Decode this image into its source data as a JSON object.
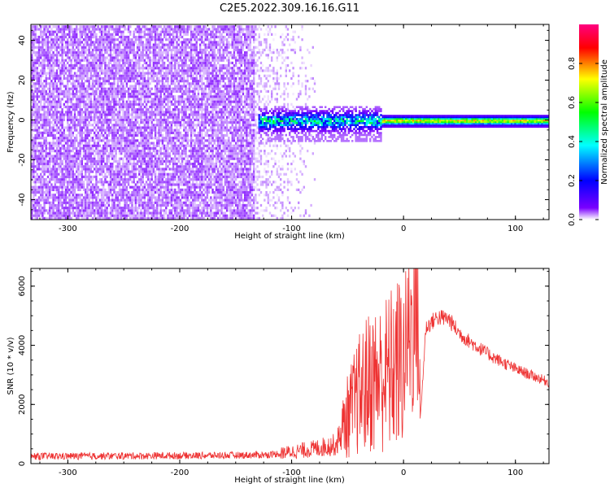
{
  "title": "C2E5.2022.309.16.16.G11",
  "chart_data": [
    {
      "type": "heatmap",
      "name": "spectrogram",
      "xlabel": "Height of straight line (km)",
      "ylabel": "Frequency (Hz)",
      "xlim": [
        -333,
        130
      ],
      "ylim": [
        -50,
        48
      ],
      "xticks": [
        -300,
        -200,
        -100,
        0,
        100
      ],
      "yticks": [
        -40,
        -20,
        0,
        20,
        40
      ],
      "colorbar": {
        "label": "Normalized spectral amplitude",
        "range": [
          0.0,
          1.0
        ],
        "ticks": [
          "0.0",
          "0.2",
          "0.4",
          "0.6",
          "0.8"
        ],
        "tick_values": [
          0.0,
          0.2,
          0.4,
          0.6,
          0.8
        ],
        "colormap": [
          "#ffffff",
          "#7a00ff",
          "#0000ff",
          "#00ffff",
          "#00ff00",
          "#ffff00",
          "#ff0000",
          "#ff0080"
        ]
      },
      "regions": [
        {
          "x": [
            -333,
            -130
          ],
          "freq": [
            -50,
            48
          ],
          "amplitude": "low noise (0.05-0.15)"
        },
        {
          "x": [
            -130,
            -20
          ],
          "freq": [
            -10,
            8
          ],
          "amplitude": "0.2-0.5 band centred near 0 Hz"
        },
        {
          "x": [
            -20,
            130
          ],
          "freq": [
            -2,
            2
          ],
          "amplitude": "0.4-0.9 narrow line at 0 Hz"
        }
      ],
      "grid": false
    },
    {
      "type": "line",
      "name": "snr",
      "xlabel": "Height of straight line (km)",
      "ylabel": "SNR (10 * v/v)",
      "xlim": [
        -333,
        130
      ],
      "ylim": [
        0,
        6600
      ],
      "xticks": [
        -300,
        -200,
        -100,
        0,
        100
      ],
      "yticks": [
        0,
        2000,
        4000,
        6000
      ],
      "color": "#ee3333",
      "grid": false,
      "series": [
        {
          "x": [
            -333,
            -300,
            -250,
            -200,
            -150,
            -120,
            -100,
            -80,
            -60,
            -50,
            -40,
            -30,
            -20,
            -10,
            0,
            5,
            10,
            12,
            15,
            20,
            30,
            40,
            50,
            60,
            70,
            80,
            90,
            100,
            110,
            120,
            130
          ],
          "y": [
            250,
            250,
            260,
            270,
            280,
            300,
            400,
            500,
            650,
            1600,
            2300,
            2800,
            2900,
            3200,
            3500,
            4500,
            4800,
            6500,
            1500,
            4600,
            4950,
            4900,
            4400,
            4100,
            3850,
            3600,
            3400,
            3200,
            3050,
            2900,
            2750
          ]
        }
      ]
    }
  ]
}
